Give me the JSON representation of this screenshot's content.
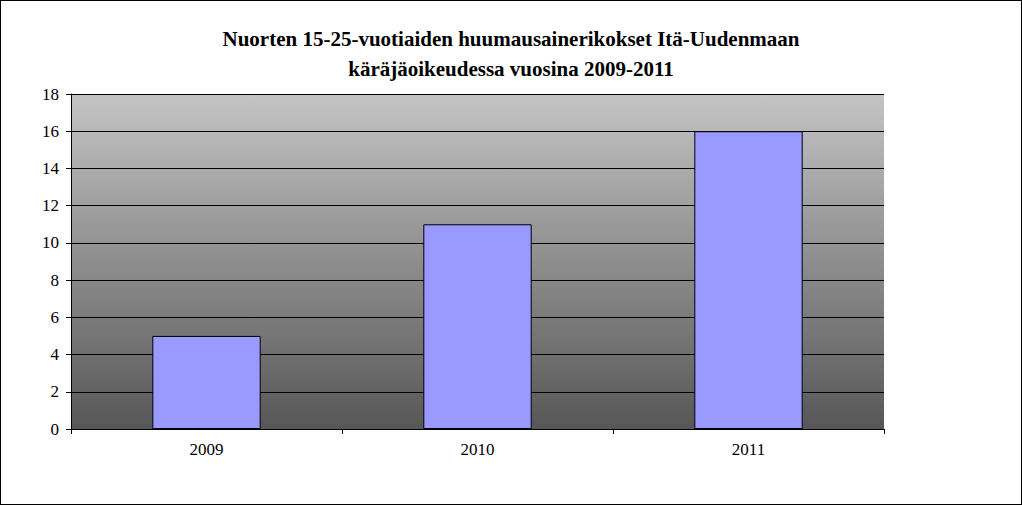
{
  "chart_data": {
    "type": "bar",
    "title": "Nuorten 15-25-vuotiaiden huumausainerikokset Itä-Uudenmaan\nkäräjäoikeudessa vuosina 2009-2011",
    "categories": [
      "2009",
      "2010",
      "2011"
    ],
    "values": [
      5,
      11,
      16
    ],
    "color": "#9999ff",
    "ylim": [
      0,
      18
    ],
    "yticks": [
      0,
      2,
      4,
      6,
      8,
      10,
      12,
      14,
      16,
      18
    ],
    "grid": true
  }
}
